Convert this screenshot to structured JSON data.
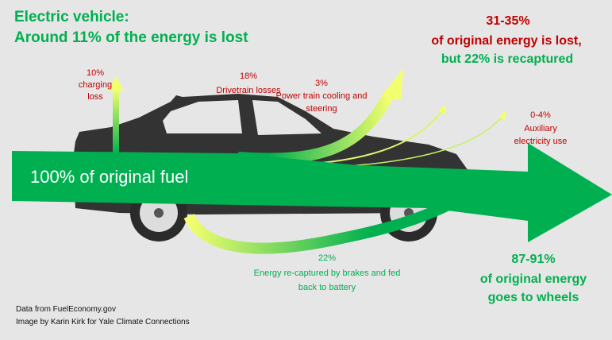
{
  "title": {
    "line1": "Electric vehicle:",
    "line2": "Around 11% of the energy is lost"
  },
  "summary_loss": {
    "line1": "31-35%",
    "line2": "of original energy is lost,",
    "line3": "but 22% is recaptured"
  },
  "input_label": "100% of original fuel",
  "losses": [
    {
      "line1": "10%",
      "line2": "charging",
      "line3": "loss"
    },
    {
      "line1": "18%",
      "line2": "Drivetrain losses"
    },
    {
      "line1": "3%",
      "line2": "Power train cooling and",
      "line3": "steering"
    },
    {
      "line1": "0-4%",
      "line2": "Auxiliary",
      "line3": "electricity use"
    }
  ],
  "recapture": {
    "line1": "22%",
    "line2": "Energy re-captured by brakes and fed",
    "line3": "back to battery"
  },
  "output": {
    "line1": "87-91%",
    "line2": "of original energy",
    "line3": "goes to wheels"
  },
  "credits": {
    "line1": "Data from FuelEconomy.gov",
    "line2": "Image by Karin Kirk for Yale Climate Connections"
  },
  "colors": {
    "background": "#e6e6e6",
    "energy_green": "#00b050",
    "loss_red": "#c00000",
    "loss_yellow": "#f4ff6e",
    "car": "#333333"
  }
}
